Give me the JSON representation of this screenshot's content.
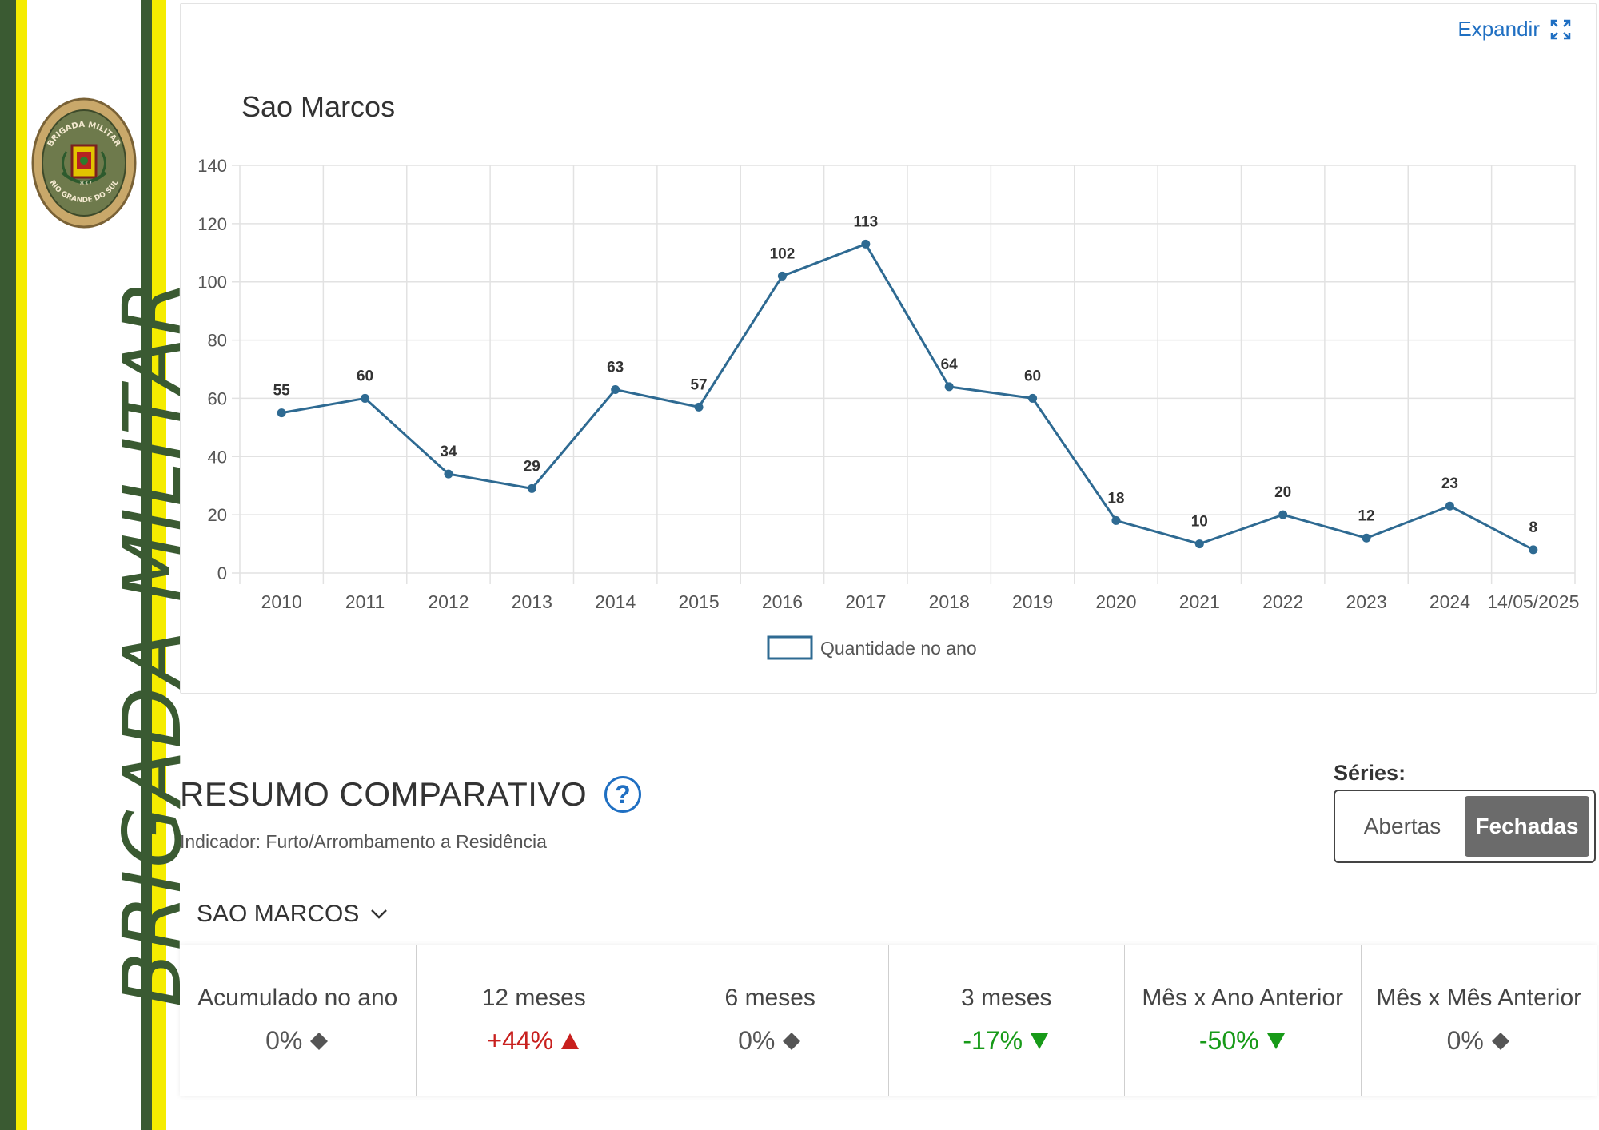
{
  "brand": {
    "vertical_text": "BRIGADA MILITAR",
    "seal_top_text": "BRIGADA MILITAR",
    "seal_bottom_text": "RIO GRANDE DO SUL",
    "seal_year": "1837",
    "colors": {
      "green": "#3a5a32",
      "yellow": "#f5ec00"
    }
  },
  "chart_card": {
    "expand_label": "Expandir",
    "expand_icon": "expand-icon"
  },
  "chart_data": {
    "type": "line",
    "title": "Sao Marcos",
    "categories": [
      "2010",
      "2011",
      "2012",
      "2013",
      "2014",
      "2015",
      "2016",
      "2017",
      "2018",
      "2019",
      "2020",
      "2021",
      "2022",
      "2023",
      "2024",
      "14/05/2025"
    ],
    "series": [
      {
        "name": "Quantidade no ano",
        "values": [
          55,
          60,
          34,
          29,
          63,
          57,
          102,
          113,
          64,
          60,
          18,
          10,
          20,
          12,
          23,
          8
        ],
        "color": "#2e6a92"
      }
    ],
    "ylim": [
      0,
      140
    ],
    "yticks": [
      0,
      20,
      40,
      60,
      80,
      100,
      120,
      140
    ],
    "grid": true,
    "data_labels": true,
    "legend_position": "bottom"
  },
  "resumo": {
    "title": "RESUMO COMPARATIVO",
    "help_icon": "question-circle-icon",
    "indicator": "Indicador: Furto/Arrombamento a Residência",
    "series_label": "Séries:",
    "series_options": [
      "Abertas",
      "Fechadas"
    ],
    "series_selected": "Fechadas",
    "location": "SAO MARCOS",
    "metrics": [
      {
        "label": "Acumulado no ano",
        "value": "0%",
        "trend": "neutral",
        "color": "#555555"
      },
      {
        "label": "12 meses",
        "value": "+44%",
        "trend": "up",
        "color": "#c8201e"
      },
      {
        "label": "6 meses",
        "value": "0%",
        "trend": "neutral",
        "color": "#555555"
      },
      {
        "label": "3 meses",
        "value": "-17%",
        "trend": "down",
        "color": "#179a18"
      },
      {
        "label": "Mês x Ano Anterior",
        "value": "-50%",
        "trend": "down",
        "color": "#179a18"
      },
      {
        "label": "Mês x Mês Anterior",
        "value": "0%",
        "trend": "neutral",
        "color": "#555555"
      }
    ]
  }
}
